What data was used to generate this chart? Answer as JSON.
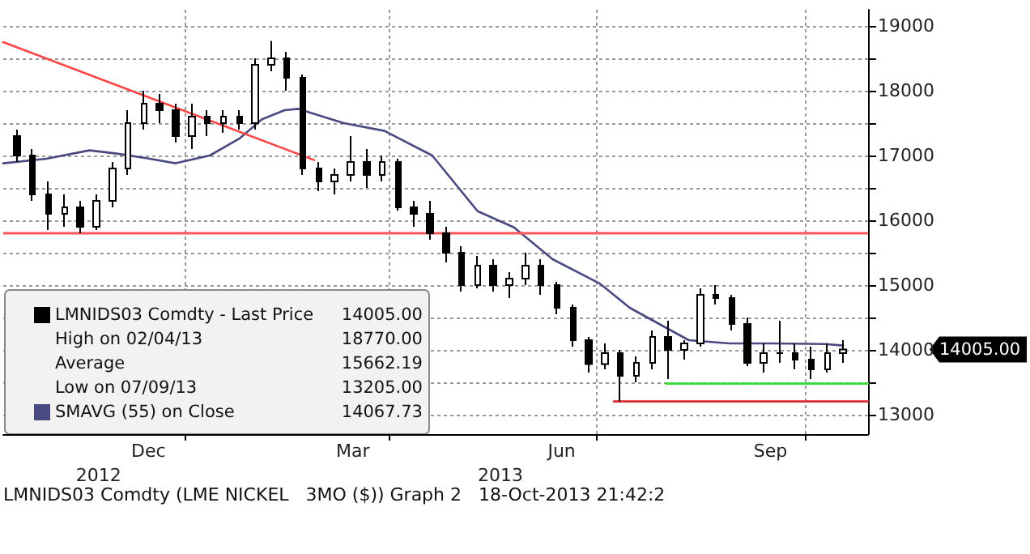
{
  "chart_data": {
    "type": "candlestick",
    "xlim": [
      "2012-10-13",
      "2013-10-29"
    ],
    "xticks": [
      {
        "value": "2013-01-01",
        "label": null
      },
      {
        "value": "2013-04-01",
        "label": null
      },
      {
        "value": "2013-07-01",
        "label": null
      },
      {
        "value": "2013-10-01",
        "label": null
      },
      {
        "value": "2012-12-16",
        "label": "Dec"
      },
      {
        "value": "2013-03-16",
        "label": "Mar"
      },
      {
        "value": "2013-06-16",
        "label": "Jun"
      },
      {
        "value": "2013-09-16",
        "label": "Sep"
      }
    ],
    "x2lim": [
      "2012-10-13",
      "2013-10-29"
    ],
    "x2ticks": [
      {
        "value": "2012-11-24",
        "label": "2012"
      },
      {
        "value": "2013-05-20",
        "label": "2013"
      }
    ],
    "ylim": [
      12700,
      19250
    ],
    "yticks": [
      13000,
      {
        "value": 13500,
        "label": null
      },
      14000,
      {
        "value": 14500,
        "label": null
      },
      15000,
      {
        "value": 15500,
        "label": null
      },
      16000,
      {
        "value": 16500,
        "label": null
      },
      17000,
      {
        "value": 17500,
        "label": null
      },
      18000,
      {
        "value": 18500,
        "label": null
      },
      19000
    ],
    "grid": true,
    "legend": "bottom left",
    "ref_lines": [
      {
        "axis": "y",
        "value": 15810,
        "color": "#ff5555"
      }
    ],
    "series": [
      {
        "name": "LMNIDS03 Comdty - Last Price",
        "color": "#000000",
        "x": [
          "2012-10-19",
          "2012-10-26",
          "2012-11-02",
          "2012-11-09",
          "2012-11-16",
          "2012-11-23",
          "2012-11-30",
          "2012-12-07",
          "2012-12-14",
          "2012-12-21",
          "2012-12-28",
          "2013-01-04",
          "2013-01-11",
          "2013-01-18",
          "2013-01-25",
          "2013-02-01",
          "2013-02-08",
          "2013-02-15",
          "2013-02-22",
          "2013-03-01",
          "2013-03-08",
          "2013-03-15",
          "2013-03-22",
          "2013-03-29",
          "2013-04-05",
          "2013-04-12",
          "2013-04-19",
          "2013-04-26",
          "2013-05-03",
          "2013-05-10",
          "2013-05-17",
          "2013-05-24",
          "2013-05-31",
          "2013-06-07",
          "2013-06-14",
          "2013-06-21",
          "2013-06-28",
          "2013-07-05",
          "2013-07-12",
          "2013-07-19",
          "2013-07-26",
          "2013-08-02",
          "2013-08-09",
          "2013-08-16",
          "2013-08-23",
          "2013-08-30",
          "2013-09-06",
          "2013-09-13",
          "2013-09-20",
          "2013-09-27",
          "2013-10-04",
          "2013-10-11",
          "2013-10-18"
        ],
        "ohlc": [
          [
            17300,
            17400,
            16900,
            17000
          ],
          [
            17000,
            17100,
            16300,
            16400
          ],
          [
            16400,
            16600,
            15850,
            16100
          ],
          [
            16100,
            16400,
            15900,
            16200
          ],
          [
            16200,
            16300,
            15800,
            15900
          ],
          [
            15900,
            16400,
            15850,
            16300
          ],
          [
            16300,
            16900,
            16200,
            16800
          ],
          [
            16800,
            17700,
            16700,
            17500
          ],
          [
            17500,
            18000,
            17400,
            17800
          ],
          [
            17800,
            17950,
            17500,
            17700
          ],
          [
            17700,
            17800,
            17200,
            17300
          ],
          [
            17300,
            17800,
            17100,
            17600
          ],
          [
            17600,
            17700,
            17300,
            17500
          ],
          [
            17500,
            17700,
            17350,
            17600
          ],
          [
            17600,
            17700,
            17400,
            17500
          ],
          [
            17500,
            18500,
            17400,
            18400
          ],
          [
            18400,
            18770,
            18300,
            18500
          ],
          [
            18500,
            18600,
            18000,
            18200
          ],
          [
            18200,
            18250,
            16700,
            16800
          ],
          [
            16800,
            16900,
            16450,
            16600
          ],
          [
            16600,
            16800,
            16400,
            16700
          ],
          [
            16700,
            17300,
            16600,
            16900
          ],
          [
            16900,
            17100,
            16500,
            16700
          ],
          [
            16700,
            17000,
            16600,
            16900
          ],
          [
            16900,
            16950,
            16150,
            16200
          ],
          [
            16200,
            16300,
            15900,
            16100
          ],
          [
            16100,
            16300,
            15700,
            15800
          ],
          [
            15800,
            15900,
            15350,
            15500
          ],
          [
            15500,
            15600,
            14900,
            15000
          ],
          [
            15000,
            15450,
            14950,
            15300
          ],
          [
            15300,
            15400,
            14900,
            15000
          ],
          [
            15000,
            15200,
            14800,
            15100
          ],
          [
            15100,
            15500,
            15000,
            15300
          ],
          [
            15300,
            15400,
            14850,
            15000
          ],
          [
            15000,
            15050,
            14550,
            14650
          ],
          [
            14650,
            14700,
            14050,
            14150
          ],
          [
            14150,
            14200,
            13650,
            13780
          ],
          [
            13780,
            14100,
            13700,
            13950
          ],
          [
            13950,
            14000,
            13205,
            13600
          ],
          [
            13600,
            13900,
            13500,
            13800
          ],
          [
            13800,
            14300,
            13700,
            14200
          ],
          [
            14200,
            14450,
            13550,
            14000
          ],
          [
            14000,
            14150,
            13850,
            14100
          ],
          [
            14100,
            14950,
            14050,
            14850
          ],
          [
            14850,
            15000,
            14700,
            14800
          ],
          [
            14800,
            14850,
            14300,
            14400
          ],
          [
            14400,
            14500,
            13750,
            13800
          ],
          [
            13800,
            14100,
            13650,
            13950
          ],
          [
            13950,
            14450,
            13800,
            13950
          ],
          [
            13950,
            14100,
            13700,
            13850
          ],
          [
            13850,
            14050,
            13550,
            13700
          ],
          [
            13700,
            14100,
            13650,
            13950
          ],
          [
            13950,
            14150,
            13800,
            14005
          ]
        ]
      },
      {
        "type": "line",
        "name": "SMAVG (55) on Close",
        "color": "#4a4a82",
        "x": [
          "2012-10-13",
          "2012-11-01",
          "2012-11-20",
          "2012-12-02",
          "2012-12-15",
          "2012-12-28",
          "2013-01-12",
          "2013-01-25",
          "2013-02-04",
          "2013-02-14",
          "2013-02-20",
          "2013-03-12",
          "2013-03-30",
          "2013-04-20",
          "2013-05-10",
          "2013-05-26",
          "2013-06-12",
          "2013-07-03",
          "2013-07-16",
          "2013-07-29",
          "2013-08-11",
          "2013-08-29",
          "2013-09-17",
          "2013-10-10",
          "2013-10-18"
        ],
        "values": [
          16880,
          16950,
          17080,
          17030,
          16960,
          16880,
          17000,
          17260,
          17560,
          17700,
          17720,
          17500,
          17380,
          17000,
          16140,
          15890,
          15400,
          15020,
          14650,
          14400,
          14150,
          14100,
          14100,
          14090,
          14067.73
        ]
      },
      {
        "type": "line",
        "color": "#ff4444",
        "x": [
          "2012-10-13",
          "2013-02-27"
        ],
        "values": [
          18750,
          16930
        ]
      },
      {
        "type": "line",
        "color": "#33dd33",
        "x": [
          "2013-08-01",
          "2013-10-29"
        ],
        "values": [
          13480,
          13480
        ]
      },
      {
        "type": "line",
        "color": "#d42a2a",
        "x": [
          "2013-07-09",
          "2013-10-29"
        ],
        "values": [
          13205,
          13205
        ]
      }
    ],
    "annotations": [
      "14005.00",
      "14005.00",
      "High on 02/04/13",
      "18770.00",
      "Average",
      "15662.19",
      "Low on 07/09/13",
      "13205.00",
      "14067.73",
      "LMNIDS03 Comdty (LME NICKEL   3MO ($)) Graph 2   18-Oct-2013 21:42:2"
    ]
  }
}
